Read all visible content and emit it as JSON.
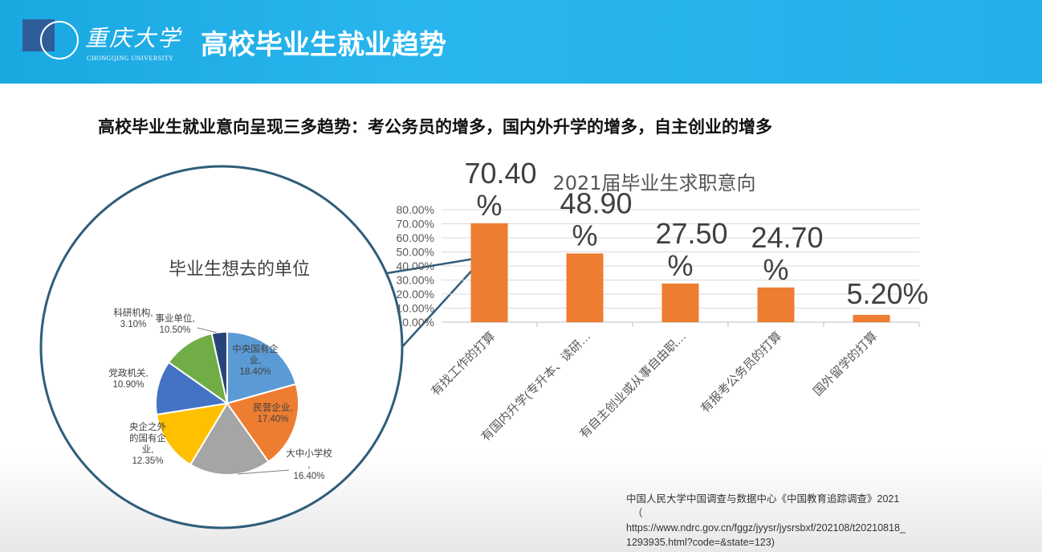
{
  "header": {
    "logo_text": "重庆大学",
    "logo_en": "CHONGQING UNIVERSITY",
    "title": "高校毕业生就业趋势"
  },
  "subtitle": "高校毕业生就业意向呈现三多趋势：考公务员的增多，国内外升学的增多，自主创业的增多",
  "chart_data": [
    {
      "type": "bar",
      "title": "2021届毕业生求职意向",
      "categories": [
        "有找工作的打算",
        "有国内升学(专升本、读研…",
        "有自主创业或从事自由职…",
        "有报考公务员的打算",
        "国外留学的打算"
      ],
      "values": [
        70.4,
        48.9,
        27.5,
        24.7,
        5.2
      ],
      "data_labels": [
        "70.40%",
        "48.90%",
        "27.50%",
        "24.70%",
        "5.20%"
      ],
      "ylim": [
        0,
        80
      ],
      "yticks": [
        "0.00%",
        "10.00%",
        "20.00%",
        "30.00%",
        "40.00%",
        "50.00%",
        "60.00%",
        "70.00%",
        "80.00%"
      ],
      "bar_color": "#ed7d31",
      "grid": true
    },
    {
      "type": "pie",
      "title": "毕业生想去的单位",
      "slices": [
        {
          "label": "中央国有企业,",
          "pct_label": "18.40%",
          "value": 18.4,
          "color": "#5b9bd5"
        },
        {
          "label": "民营企业,",
          "pct_label": "17.40%",
          "value": 17.4,
          "color": "#ed7d31"
        },
        {
          "label": "大中小学校,",
          "pct_label": "16.40%",
          "value": 16.4,
          "color": "#a5a5a5"
        },
        {
          "label": "央企之外的国有企业,",
          "pct_label": "12.35%",
          "value": 12.35,
          "color": "#ffc000"
        },
        {
          "label": "党政机关,",
          "pct_label": "10.90%",
          "value": 10.9,
          "color": "#4472c4"
        },
        {
          "label": "事业单位,",
          "pct_label": "10.50%",
          "value": 10.5,
          "color": "#70ad47"
        },
        {
          "label": "科研机构,",
          "pct_label": "3.10%",
          "value": 3.1,
          "color": "#264478"
        }
      ]
    }
  ],
  "source": {
    "line1": "中国人民大学中国调查与数据中心《中国教育追踪调查》2021",
    "line2": "（",
    "line3": "https://www.ndrc.gov.cn/fggz/jyysr/jysrsbxf/202108/t20210818_",
    "line4": "1293935.html?code=&state=123)"
  }
}
